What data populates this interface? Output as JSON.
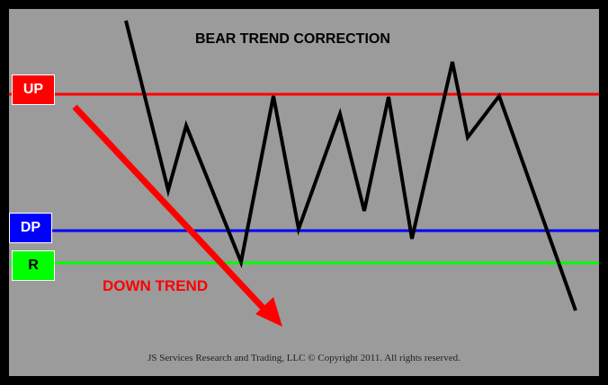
{
  "title": "BEAR TREND CORRECTION",
  "levels": {
    "up": {
      "label": "UP",
      "color": "#ff0000",
      "text_color": "#ffffff",
      "box_color": "#ff0000"
    },
    "dp": {
      "label": "DP",
      "color": "#0000ff",
      "text_color": "#ffffff",
      "box_color": "#0000ff"
    },
    "r": {
      "label": "R",
      "color": "#00ff00",
      "text_color": "#000000",
      "box_color": "#00ff00"
    }
  },
  "trend": {
    "label": "DOWN TREND",
    "color": "#ff0000"
  },
  "price_line_color": "#000000",
  "copyright": "JS Services Research and Trading, LLC © Copyright 2011. All rights reserved."
}
